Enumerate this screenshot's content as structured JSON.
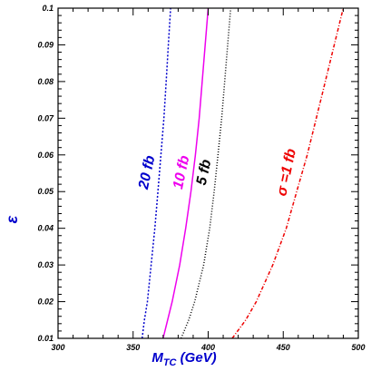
{
  "chart_data": {
    "type": "line",
    "xlabel": "M",
    "xlabel_sub": "TC",
    "xlabel_unit": " (GeV)",
    "ylabel": "ε",
    "xlim": [
      300,
      500
    ],
    "ylim": [
      0.01,
      0.1
    ],
    "x_ticks": [
      300,
      350,
      400,
      450,
      500
    ],
    "y_ticks": [
      0.01,
      0.02,
      0.03,
      0.04,
      0.05,
      0.06,
      0.07,
      0.08,
      0.09,
      0.1
    ],
    "grid": false,
    "colors": {
      "axis": "#000000",
      "xlabel": "#0000cc",
      "ylabel": "#0000cc"
    },
    "series": [
      {
        "name": "20 fb",
        "color": "#0000cc",
        "dash": "2,2",
        "label_at": [
          362,
          0.055
        ],
        "points": [
          [
            356,
            0.01
          ],
          [
            357.5,
            0.015
          ],
          [
            359.5,
            0.02
          ],
          [
            362,
            0.03
          ],
          [
            364.5,
            0.04
          ],
          [
            366.5,
            0.05
          ],
          [
            368.5,
            0.06
          ],
          [
            370.5,
            0.07
          ],
          [
            372,
            0.08
          ],
          [
            373.5,
            0.09
          ],
          [
            375,
            0.1
          ]
        ]
      },
      {
        "name": "10 fb",
        "color": "#ee00ee",
        "dash": "",
        "label_at": [
          385,
          0.055
        ],
        "points": [
          [
            370,
            0.01
          ],
          [
            373,
            0.015
          ],
          [
            376,
            0.02
          ],
          [
            381,
            0.03
          ],
          [
            385,
            0.04
          ],
          [
            388.5,
            0.05
          ],
          [
            391.5,
            0.06
          ],
          [
            394,
            0.07
          ],
          [
            396,
            0.08
          ],
          [
            398,
            0.09
          ],
          [
            400,
            0.1
          ]
        ]
      },
      {
        "name": "5 fb",
        "color": "#000000",
        "dash": "1,2",
        "label_at": [
          400,
          0.055
        ],
        "points": [
          [
            382,
            0.01
          ],
          [
            387,
            0.015
          ],
          [
            391,
            0.02
          ],
          [
            397,
            0.03
          ],
          [
            401,
            0.04
          ],
          [
            404,
            0.05
          ],
          [
            406.5,
            0.06
          ],
          [
            409,
            0.07
          ],
          [
            411,
            0.08
          ],
          [
            413,
            0.09
          ],
          [
            415,
            0.1
          ]
        ]
      },
      {
        "name": "σ =1 fb",
        "color": "#ee0000",
        "dash": "4,2,1,2",
        "label_at": [
          455,
          0.055
        ],
        "points": [
          [
            416,
            0.01
          ],
          [
            425,
            0.015
          ],
          [
            432,
            0.02
          ],
          [
            443,
            0.03
          ],
          [
            452,
            0.04
          ],
          [
            459,
            0.05
          ],
          [
            466,
            0.06
          ],
          [
            472,
            0.07
          ],
          [
            478,
            0.08
          ],
          [
            484,
            0.09
          ],
          [
            490,
            0.1
          ]
        ]
      }
    ]
  }
}
